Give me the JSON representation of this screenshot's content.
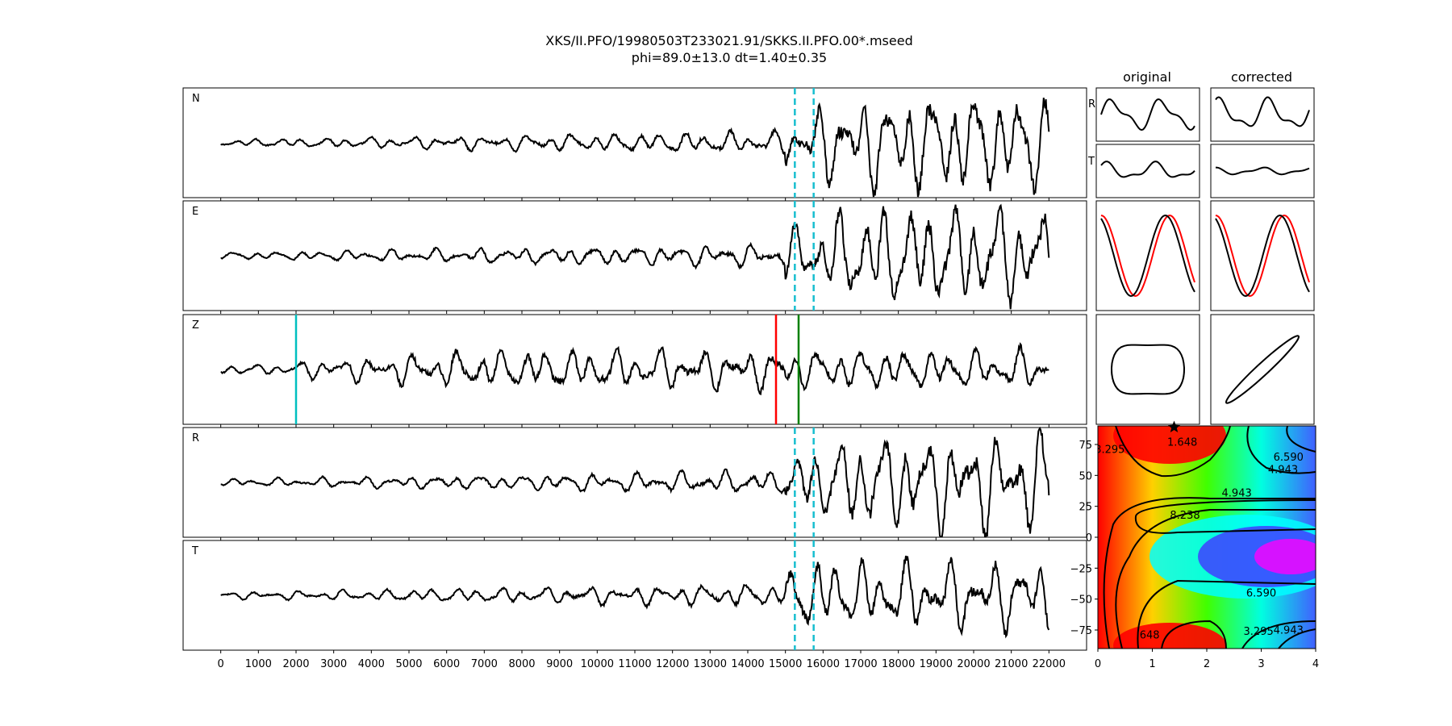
{
  "title_line1": "XKS/II.PFO/19980503T233021.91/SKKS.II.PFO.00*.mseed",
  "title_line2": "phi=89.0±13.0 dt=1.40±0.35",
  "col_original": "original",
  "col_corrected": "corrected",
  "colors": {
    "trace": "#000000",
    "window": "#17becf",
    "pick_cyan": "#00bfbf",
    "pick_red": "#ff0000",
    "pick_green": "#008000"
  },
  "chart_data": [
    {
      "type": "line",
      "name": "seismogram-panels",
      "channels": [
        "N",
        "E",
        "Z",
        "R",
        "T"
      ],
      "xlim": [
        -1000,
        23000
      ],
      "x_ticks": [
        0,
        1000,
        2000,
        3000,
        4000,
        5000,
        6000,
        7000,
        8000,
        9000,
        10000,
        11000,
        12000,
        13000,
        14000,
        15000,
        16000,
        17000,
        18000,
        19000,
        20000,
        21000,
        22000
      ],
      "x_tick_labels": [
        "0",
        "1000",
        "2000",
        "3000",
        "4000",
        "5000",
        "6000",
        "7000",
        "8000",
        "9000",
        "10000",
        "11000",
        "12000",
        "13000",
        "14000",
        "15000",
        "16000",
        "17000",
        "18000",
        "19000",
        "20000",
        "21000",
        "22000"
      ],
      "trace_start": 0,
      "trace_end": 22000,
      "window_lines": [
        15250,
        15750
      ],
      "z_markers": [
        {
          "x": 2000,
          "color": "cyan"
        },
        {
          "x": 14750,
          "color": "red"
        },
        {
          "x": 15350,
          "color": "green"
        }
      ]
    },
    {
      "type": "line",
      "name": "particle-motion-panels",
      "columns": [
        "original",
        "corrected"
      ],
      "row_labels": [
        "R",
        "T"
      ]
    },
    {
      "type": "heatmap",
      "name": "error-surface",
      "xlim": [
        0,
        4
      ],
      "ylim": [
        -90,
        90
      ],
      "x_ticks": [
        0,
        1,
        2,
        3,
        4
      ],
      "x_tick_labels": [
        "0",
        "1",
        "2",
        "3",
        "4"
      ],
      "y_ticks": [
        75,
        50,
        25,
        0,
        -25,
        -50,
        -75
      ],
      "y_tick_labels": [
        "75",
        "50",
        "25",
        "0",
        "−25",
        "−50",
        "−75"
      ],
      "best": {
        "dt": 1.4,
        "phi": 89.0
      },
      "contour_labels": [
        {
          "text": "3.295",
          "x": 0.22,
          "y": 68
        },
        {
          "text": "1.648",
          "x": 1.55,
          "y": 74
        },
        {
          "text": "6.590",
          "x": 3.5,
          "y": 62
        },
        {
          "text": "4.943",
          "x": 3.4,
          "y": 52
        },
        {
          "text": "4.943",
          "x": 2.55,
          "y": 33
        },
        {
          "text": "8.238",
          "x": 1.6,
          "y": 15
        },
        {
          "text": "6.590",
          "x": 3.0,
          "y": -48
        },
        {
          "text": "3.295",
          "x": 2.95,
          "y": -79
        },
        {
          "text": "4.943",
          "x": 3.5,
          "y": -78
        },
        {
          "text": "648",
          "x": 0.95,
          "y": -82
        }
      ]
    }
  ]
}
